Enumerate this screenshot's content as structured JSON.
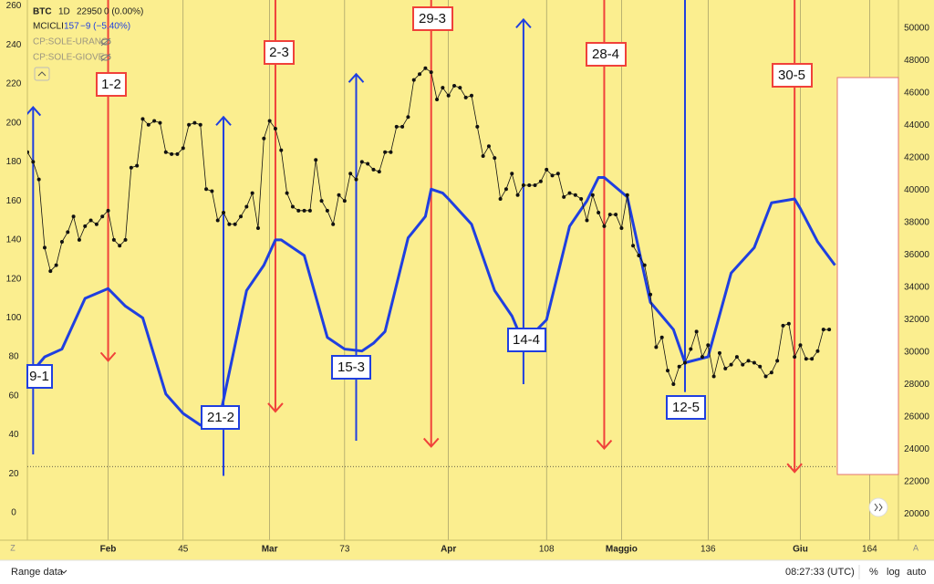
{
  "chart_data": {
    "type": "line",
    "xlim": [
      18,
      169
    ],
    "xticks": [
      {
        "value": 32,
        "label": "Feb"
      },
      45,
      {
        "value": 60,
        "label": "Mar"
      },
      73,
      {
        "value": 91,
        "label": "Apr"
      },
      108,
      {
        "value": 121,
        "label": "Maggio"
      },
      136,
      {
        "value": 152,
        "label": "Giu"
      },
      164
    ],
    "ylim": [
      -14,
      263
    ],
    "yticks": [
      0,
      20,
      40,
      60,
      80,
      100,
      120,
      140,
      160,
      180,
      200,
      220,
      240,
      260
    ],
    "y2lim": [
      18400,
      51750
    ],
    "y2ticks": [
      20000,
      22000,
      24000,
      26000,
      28000,
      30000,
      32000,
      34000,
      36000,
      38000,
      40000,
      42000,
      44000,
      46000,
      48000,
      50000
    ],
    "last_price": 22950,
    "grid": true,
    "series": [
      {
        "name": "MCICLI",
        "color": "#1f3fe0",
        "x": [
          19,
          21,
          24,
          28,
          32,
          35,
          38,
          42,
          45,
          48,
          51,
          53,
          56,
          59,
          61,
          62,
          66,
          70,
          73,
          76,
          78,
          80,
          84,
          87,
          88,
          90,
          91,
          95,
          99,
          102,
          104,
          108,
          112,
          115,
          117,
          118,
          122,
          126,
          130,
          132,
          136,
          140,
          144,
          147,
          151,
          152,
          155,
          158
        ],
        "values": [
          73,
          80,
          84,
          110,
          115,
          106,
          100,
          61,
          51,
          45,
          44,
          72,
          114,
          127,
          140,
          140,
          132,
          90,
          84,
          83,
          87,
          93,
          141,
          152,
          166,
          164,
          161,
          148,
          114,
          101,
          87,
          99,
          147,
          160,
          172,
          172,
          162,
          108,
          94,
          77,
          80,
          123,
          136,
          159,
          161,
          156,
          139,
          127
        ]
      },
      {
        "color": "#111111",
        "markers": true,
        "x": [
          18,
          19,
          20,
          21,
          22,
          23,
          24,
          25,
          26,
          27,
          28,
          29,
          30,
          31,
          32,
          33,
          34,
          35,
          36,
          37,
          38,
          39,
          40,
          41,
          42,
          43,
          44,
          45,
          46,
          47,
          48,
          49,
          50,
          51,
          52,
          53,
          54,
          55,
          56,
          57,
          58,
          59,
          60,
          61,
          62,
          63,
          64,
          65,
          66,
          67,
          68,
          69,
          70,
          71,
          72,
          73,
          74,
          75,
          76,
          77,
          78,
          79,
          80,
          81,
          82,
          83,
          84,
          85,
          86,
          87,
          88,
          89,
          90,
          91,
          92,
          93,
          94,
          95,
          96,
          97,
          98,
          99,
          100,
          101,
          102,
          103,
          104,
          105,
          106,
          107,
          108,
          109,
          110,
          111,
          112,
          113,
          114,
          115,
          116,
          117,
          118,
          119,
          120,
          121,
          122,
          123,
          124,
          125,
          126,
          127,
          128,
          129,
          130,
          131,
          132,
          133,
          134,
          135,
          136,
          137,
          138,
          139,
          140,
          141,
          142,
          143,
          144,
          145,
          146,
          147,
          148,
          149,
          150,
          151,
          152,
          153,
          154,
          155,
          156,
          157
        ],
        "values": [
          185,
          180,
          171,
          136,
          124,
          127,
          139,
          144,
          152,
          140,
          147,
          150,
          148,
          152,
          155,
          140,
          137,
          140,
          177,
          178,
          202,
          199,
          201,
          200,
          185,
          184,
          184,
          187,
          199,
          200,
          199,
          166,
          165,
          150,
          154,
          148,
          148,
          152,
          157,
          164,
          146,
          192,
          201,
          197,
          186,
          164,
          157,
          155,
          155,
          155,
          181,
          160,
          155,
          148,
          163,
          160,
          174,
          171,
          180,
          179,
          176,
          175,
          185,
          185,
          198,
          198,
          203,
          222,
          225,
          228,
          226,
          212,
          218,
          214,
          219,
          218,
          213,
          214,
          198,
          183,
          188,
          182,
          161,
          166,
          174,
          163,
          168,
          168,
          168,
          170,
          176,
          173,
          174,
          162,
          164,
          163,
          161,
          150,
          163,
          154,
          147,
          153,
          153,
          146,
          163,
          137,
          132,
          127,
          112,
          85,
          90,
          73,
          66,
          75,
          77,
          84,
          93,
          80,
          86,
          70,
          82,
          74,
          76,
          80,
          76,
          78,
          77,
          75,
          70,
          72,
          78,
          96,
          97,
          80,
          86,
          79,
          79,
          83,
          94,
          94
        ]
      }
    ],
    "annotations": [
      {
        "label": "9-1",
        "color": "#1f3fe0",
        "x": 19,
        "from": 30,
        "to": 208
      },
      {
        "label": "1-2",
        "color": "#f0413a",
        "x": 32,
        "from": 263,
        "to": 78
      },
      {
        "label": "21-2",
        "color": "#1f3fe0",
        "x": 52,
        "from": 19,
        "to": 203
      },
      {
        "label": "2-3",
        "color": "#f0413a",
        "x": 61,
        "from": 263,
        "to": 52
      },
      {
        "label": "15-3",
        "color": "#1f3fe0",
        "x": 75,
        "from": 37,
        "to": 225
      },
      {
        "label": "29-3",
        "color": "#f0413a",
        "x": 88,
        "from": 263,
        "to": 34
      },
      {
        "label": "14-4",
        "color": "#1f3fe0",
        "x": 104,
        "from": 66,
        "to": 253
      },
      {
        "label": "28-4",
        "color": "#f0413a",
        "x": 118,
        "from": 263,
        "to": 33
      },
      {
        "label": "12-5",
        "color": "#1f3fe0",
        "x": 132,
        "from": 62,
        "to": 275
      },
      {
        "label": "30-5",
        "color": "#f0413a",
        "x": 151,
        "from": 263,
        "to": 21
      }
    ]
  },
  "legend": {
    "symbol": "BTC",
    "interval": "1D",
    "change": "0 (0.00%)",
    "indicator_value": 157,
    "indicator_change": "−9 (−5.40%)",
    "hidden": [
      "CP:SOLE-URANO",
      "CP:SOLE-GIOVE"
    ]
  },
  "toolbar": {
    "left_scale": "Z",
    "right_scale": "A",
    "range": "Range data",
    "clock": "08:27:33 (UTC)",
    "percent": "%",
    "log": "log",
    "auto": "auto"
  }
}
